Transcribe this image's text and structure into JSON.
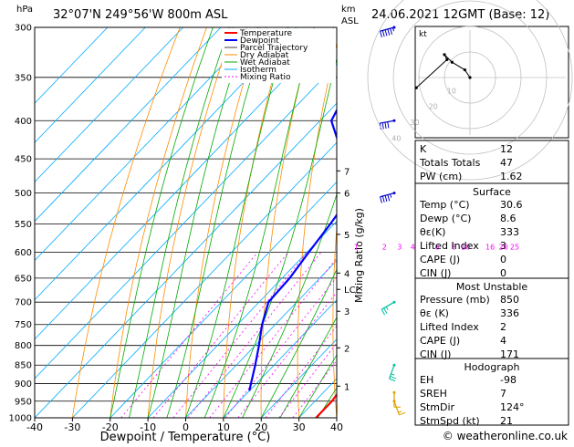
{
  "header": {
    "units_hpa": "hPa",
    "location": "32°07'N  249°56'W  800m  ASL",
    "units_km": "km",
    "units_asl": "ASL",
    "datetime": "24.06.2021  12GMT  (Base: 12)"
  },
  "footer": {
    "credit": "© weatheronline.co.uk"
  },
  "colors": {
    "temperature": "#ff0000",
    "dewpoint": "#0000ff",
    "parcel": "#a0a0a0",
    "dry_adiabat": "#ff8c00",
    "wet_adiabat": "#00aa00",
    "isotherm": "#00aaff",
    "mixing_ratio": "#ff00ff",
    "wind_barb": "#00c0c0"
  },
  "chart_data": [
    {
      "type": "line",
      "subtype": "skew-t log-p",
      "xlabel": "Dewpoint / Temperature (°C)",
      "ylabel_right": "Mixing Ratio (g/kg)",
      "x_ticks": [
        -40,
        -30,
        -20,
        -10,
        0,
        10,
        20,
        30,
        40
      ],
      "p_ticks": [
        300,
        350,
        400,
        450,
        500,
        550,
        600,
        650,
        700,
        750,
        800,
        850,
        900,
        950,
        1000
      ],
      "pressure_range": [
        1000,
        300
      ],
      "x_range": [
        -40,
        40
      ],
      "km_ticks": [
        {
          "label": "7",
          "p": 467
        },
        {
          "label": "6",
          "p": 500
        },
        {
          "label": "5",
          "p": 568
        },
        {
          "label": "4",
          "p": 640
        },
        {
          "label": "LCL",
          "p": 673
        },
        {
          "label": "3",
          "p": 720
        },
        {
          "label": "2",
          "p": 806
        },
        {
          "label": "1",
          "p": 907
        }
      ],
      "mixing_ratio_labels": [
        {
          "label": "1",
          "t": 3
        },
        {
          "label": "2",
          "t": 10.5
        },
        {
          "label": "3",
          "t": 14.5
        },
        {
          "label": "4",
          "t": 18
        },
        {
          "label": "6",
          "t": 24.5
        },
        {
          "label": "8",
          "t": 29
        },
        {
          "label": "10",
          "t": 32
        },
        {
          "label": "16",
          "t": 38.5
        },
        {
          "label": "20",
          "t": 42
        },
        {
          "label": "25",
          "t": 45
        }
      ],
      "legend": [
        "Temperature",
        "Dewpoint",
        "Parcel Trajectory",
        "Dry Adiabat",
        "Wet Adiabat",
        "Isotherm",
        "Mixing Ratio"
      ],
      "legend_position": "top",
      "series": [
        {
          "name": "Temperature",
          "points": [
            [
              1000,
              34.5
            ],
            [
              950,
              34.5
            ],
            [
              900,
              33.5
            ],
            [
              850,
              30.6
            ],
            [
              800,
              26.5
            ],
            [
              750,
              22
            ],
            [
              700,
              17.5
            ],
            [
              650,
              12.5
            ],
            [
              600,
              7.5
            ],
            [
              550,
              2
            ],
            [
              500,
              -3.5
            ],
            [
              450,
              -9.5
            ],
            [
              400,
              -16
            ],
            [
              350,
              -24
            ],
            [
              300,
              -33
            ]
          ]
        },
        {
          "name": "Dewpoint",
          "points": [
            [
              920,
              10
            ],
            [
              900,
              8.6
            ],
            [
              850,
              5
            ],
            [
              800,
              1
            ],
            [
              750,
              -3.5
            ],
            [
              700,
              -7.5
            ],
            [
              650,
              -8
            ],
            [
              600,
              -9.5
            ],
            [
              550,
              -11
            ],
            [
              500,
              -13
            ],
            [
              450,
              -24
            ],
            [
              400,
              -37
            ],
            [
              350,
              -42
            ],
            [
              300,
              -51
            ]
          ]
        },
        {
          "name": "Parcel Trajectory",
          "points": [
            [
              850,
              30.6
            ],
            [
              800,
              24
            ],
            [
              750,
              17.5
            ],
            [
              700,
              11
            ],
            [
              673,
              8
            ],
            [
              650,
              6.5
            ],
            [
              600,
              3
            ],
            [
              550,
              -1
            ],
            [
              500,
              -5.5
            ],
            [
              450,
              -11
            ],
            [
              400,
              -17.5
            ],
            [
              350,
              -25.5
            ],
            [
              300,
              -35
            ]
          ]
        }
      ]
    },
    {
      "type": "scatter",
      "subtype": "hodograph",
      "unit_label": "kt",
      "ring_labels": [
        "10",
        "20",
        "30",
        "40"
      ],
      "points": [
        [
          0,
          0
        ],
        [
          -2,
          3
        ],
        [
          -7,
          6
        ],
        [
          -10,
          9
        ],
        [
          -9,
          7
        ],
        [
          -21,
          -4
        ]
      ]
    }
  ],
  "wind_barbs": [
    {
      "p": 300,
      "dir": 255,
      "speed": 45
    },
    {
      "p": 400,
      "dir": 260,
      "speed": 40
    },
    {
      "p": 500,
      "dir": 255,
      "speed": 35
    },
    {
      "p": 700,
      "dir": 240,
      "speed": 15
    },
    {
      "p": 850,
      "dir": 200,
      "speed": 15
    },
    {
      "p": 925,
      "dir": 180,
      "speed": 10
    },
    {
      "p": 950,
      "dir": 160,
      "speed": 5
    }
  ],
  "indices": {
    "rows": [
      {
        "label": "K",
        "value": "12"
      },
      {
        "label": "Totals Totals",
        "value": "47"
      },
      {
        "label": "PW (cm)",
        "value": "1.62"
      }
    ]
  },
  "surface": {
    "title": "Surface",
    "rows": [
      {
        "label": "Temp (°C)",
        "value": "30.6"
      },
      {
        "label": "Dewp (°C)",
        "value": "8.6"
      },
      {
        "label": "θε(K)",
        "value": "333"
      },
      {
        "label": "Lifted Index",
        "value": "3"
      },
      {
        "label": "CAPE (J)",
        "value": "0"
      },
      {
        "label": "CIN (J)",
        "value": "0"
      }
    ]
  },
  "most_unstable": {
    "title": "Most Unstable",
    "rows": [
      {
        "label": "Pressure (mb)",
        "value": "850"
      },
      {
        "label": "θε (K)",
        "value": "336"
      },
      {
        "label": "Lifted Index",
        "value": "2"
      },
      {
        "label": "CAPE (J)",
        "value": "4"
      },
      {
        "label": "CIN (J)",
        "value": "171"
      }
    ]
  },
  "hodograph_table": {
    "title": "Hodograph",
    "rows": [
      {
        "label": "EH",
        "value": "-98"
      },
      {
        "label": "SREH",
        "value": "7"
      },
      {
        "label": "StmDir",
        "value": "124°"
      },
      {
        "label": "StmSpd (kt)",
        "value": "21"
      }
    ]
  }
}
